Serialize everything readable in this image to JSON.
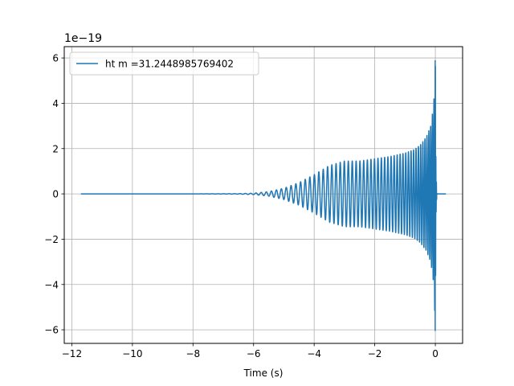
{
  "chart_data": {
    "type": "line",
    "xlabel": "Time (s)",
    "ylabel": "",
    "y_offset_label": "1e−19",
    "xlim": [
      -12.25,
      0.9
    ],
    "ylim": [
      -6.6,
      6.5
    ],
    "x_ticks": [
      -12,
      -10,
      -8,
      -6,
      -4,
      -2,
      0
    ],
    "x_tick_labels": [
      "−12",
      "−10",
      "−8",
      "−6",
      "−4",
      "−2",
      "0"
    ],
    "y_ticks": [
      -6,
      -4,
      -2,
      0,
      2,
      4,
      6
    ],
    "y_tick_labels": [
      "−6",
      "−4",
      "−2",
      "0",
      "2",
      "4",
      "6"
    ],
    "grid": true,
    "legend": {
      "placement": "top-left"
    },
    "series": [
      {
        "name": "ht m =31.2448985769402",
        "color": "#1f77b4",
        "x_range": [
          -11.7,
          0.35
        ],
        "peak_amplitude": 5.9,
        "envelope": [
          [
            -11.7,
            0.0
          ],
          [
            -8.0,
            0.0
          ],
          [
            -6.5,
            0.01
          ],
          [
            -6.0,
            0.03
          ],
          [
            -5.5,
            0.1
          ],
          [
            -5.0,
            0.25
          ],
          [
            -4.5,
            0.5
          ],
          [
            -4.0,
            0.85
          ],
          [
            -3.5,
            1.25
          ],
          [
            -3.0,
            1.45
          ],
          [
            -2.5,
            1.45
          ],
          [
            -2.0,
            1.55
          ],
          [
            -1.5,
            1.65
          ],
          [
            -1.0,
            1.8
          ],
          [
            -0.7,
            1.95
          ],
          [
            -0.5,
            2.15
          ],
          [
            -0.3,
            2.5
          ],
          [
            -0.15,
            3.0
          ],
          [
            -0.05,
            4.0
          ],
          [
            0.0,
            5.9
          ],
          [
            0.02,
            1.0
          ],
          [
            0.05,
            0.0
          ],
          [
            0.35,
            0.0
          ]
        ]
      }
    ]
  }
}
